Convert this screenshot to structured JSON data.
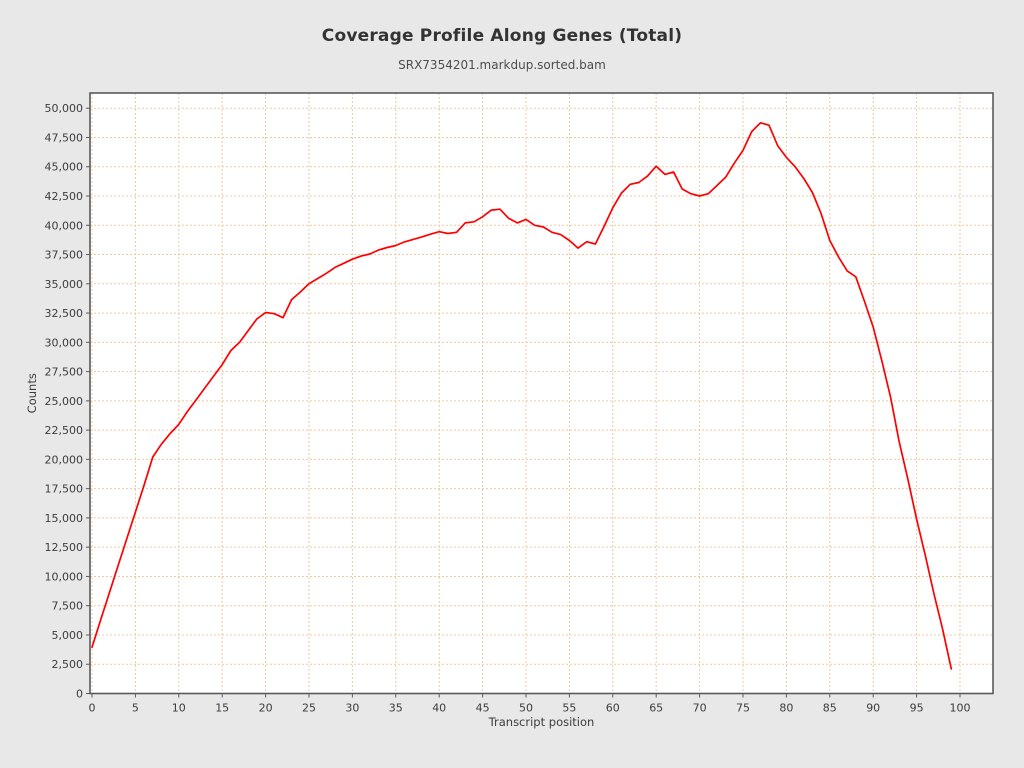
{
  "chart_data": {
    "type": "line",
    "title": "Coverage Profile Along Genes (Total)",
    "subtitle": "SRX7354201.markdup.sorted.bam",
    "xlabel": "Transcript position",
    "ylabel": "Counts",
    "legend": false,
    "grid": true,
    "x_ticks": [
      0,
      5,
      10,
      15,
      20,
      25,
      30,
      35,
      40,
      45,
      50,
      55,
      60,
      65,
      70,
      75,
      80,
      85,
      90,
      95,
      100
    ],
    "y_ticks": [
      0,
      2500,
      5000,
      7500,
      10000,
      12500,
      15000,
      17500,
      20000,
      22500,
      25000,
      27500,
      30000,
      32500,
      35000,
      37500,
      40000,
      42500,
      45000,
      47500,
      50000
    ],
    "xlim": [
      0,
      103.8
    ],
    "ylim": [
      0,
      51300
    ],
    "colors": {
      "line": "#ff0000",
      "grid": "#f0c8a0",
      "plot_background": "#ffffff",
      "page_background": "#e8e8e8",
      "border": "#5a5a5a",
      "tick_text": "#3c3c3c"
    },
    "series": [
      {
        "name": "Coverage",
        "x_is_index": true,
        "values": [
          3950,
          6300,
          8600,
          10900,
          13200,
          15500,
          17800,
          20200,
          21300,
          22200,
          23000,
          24100,
          25100,
          26100,
          27100,
          28100,
          29300,
          30000,
          31000,
          32000,
          32550,
          32450,
          32100,
          33650,
          34300,
          35000,
          35450,
          35900,
          36400,
          36750,
          37100,
          37370,
          37550,
          37880,
          38100,
          38270,
          38580,
          38790,
          39010,
          39240,
          39450,
          39300,
          39400,
          40200,
          40300,
          40720,
          41300,
          41370,
          40600,
          40200,
          40500,
          40000,
          39850,
          39400,
          39200,
          38700,
          38050,
          38600,
          38400,
          39900,
          41500,
          42750,
          43500,
          43650,
          44200,
          45050,
          44350,
          44550,
          43100,
          42700,
          42500,
          42700,
          43400,
          44100,
          45300,
          46400,
          48000,
          48750,
          48550,
          46800,
          45800,
          45000,
          44000,
          42800,
          41000,
          38700,
          37300,
          36100,
          35600,
          33500,
          31300,
          28400,
          25300,
          21500,
          18300,
          14900,
          11800,
          8500,
          5500,
          2100
        ]
      }
    ]
  }
}
